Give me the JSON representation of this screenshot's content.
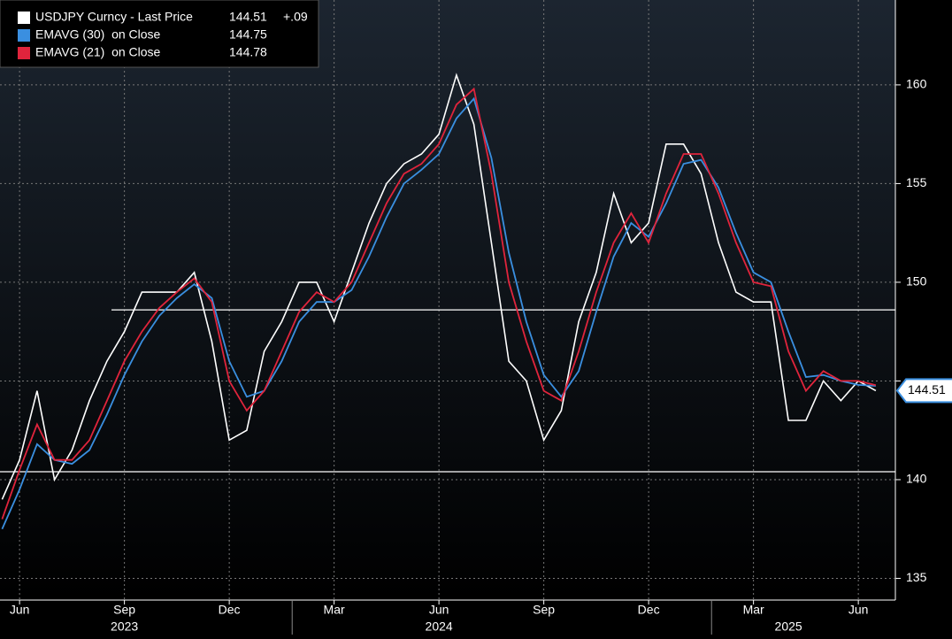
{
  "chart_data": {
    "type": "line",
    "legend": [
      {
        "name": "USDJPY Curncy - Last Price",
        "value": "144.51",
        "change": "+.09"
      },
      {
        "name": "EMAVG (30)  on Close",
        "value": "144.75"
      },
      {
        "name": "EMAVG (21)  on Close",
        "value": "144.78"
      }
    ],
    "x": [
      4.5,
      5,
      5.5,
      6,
      6.5,
      7,
      7.5,
      8,
      8.5,
      9,
      9.5,
      10,
      10.5,
      11,
      11.5,
      12,
      12.5,
      13,
      13.5,
      14,
      14.5,
      15,
      15.5,
      16,
      16.5,
      17,
      17.5,
      18,
      18.5,
      19,
      19.5,
      20,
      20.5,
      21,
      21.5,
      22,
      22.5,
      23,
      23.5,
      24,
      24.5,
      25,
      25.5,
      26,
      26.5,
      27,
      27.5,
      28,
      28.5,
      29,
      29.5
    ],
    "series": [
      {
        "name": "USDJPY Curncy - Last Price",
        "color": "#ffffff",
        "values": [
          139,
          141,
          144.5,
          140,
          141.5,
          144,
          146,
          147.5,
          149.5,
          149.5,
          149.5,
          150.5,
          147,
          142,
          142.5,
          146.5,
          148,
          150,
          150,
          148,
          150.5,
          153,
          155,
          156,
          156.5,
          157.5,
          160.5,
          158,
          152,
          146,
          145,
          142,
          143.5,
          148,
          150.5,
          154.5,
          152,
          153,
          157,
          157,
          155.5,
          152,
          149.5,
          149,
          149,
          143,
          143,
          145,
          144,
          145,
          144.51
        ]
      },
      {
        "name": "EMAVG (30)  on Close",
        "color": "#3a8fe0",
        "values": [
          137.5,
          139.5,
          141.8,
          141,
          140.8,
          141.5,
          143.3,
          145.3,
          147,
          148.3,
          149.2,
          149.9,
          149.2,
          146,
          144.2,
          144.5,
          146,
          148,
          149,
          149,
          149.6,
          151.3,
          153.3,
          155,
          155.7,
          156.5,
          158.3,
          159.3,
          156.3,
          151.5,
          148,
          145.3,
          144.2,
          145.5,
          148.5,
          151.3,
          153,
          152.3,
          154,
          156,
          156.2,
          154.8,
          152.5,
          150.5,
          150,
          147.5,
          145.2,
          145.3,
          145,
          144.8,
          144.75
        ]
      },
      {
        "name": "EMAVG (21)  on Close",
        "color": "#e0243c",
        "values": [
          138,
          140.5,
          142.8,
          141,
          141,
          142,
          144,
          146,
          147.5,
          148.7,
          149.5,
          150.2,
          149,
          145,
          143.5,
          144.5,
          146.5,
          148.5,
          149.5,
          149,
          150,
          152,
          154,
          155.5,
          156,
          157,
          159,
          159.8,
          155.5,
          150,
          147,
          144.5,
          144,
          146.5,
          149.5,
          152,
          153.5,
          152,
          154.5,
          156.5,
          156.5,
          154.5,
          152,
          150,
          149.8,
          146.5,
          144.5,
          145.5,
          145,
          145,
          144.78
        ]
      }
    ],
    "xlim": [
      4.44,
      30.06
    ],
    "xticks": [
      {
        "value": 5,
        "label": "Jun"
      },
      {
        "value": 8,
        "label": "Sep"
      },
      {
        "value": 11,
        "label": "Dec"
      },
      {
        "value": 14,
        "label": "Mar"
      },
      {
        "value": 17,
        "label": "Jun"
      },
      {
        "value": 20,
        "label": "Sep"
      },
      {
        "value": 23,
        "label": "Dec"
      },
      {
        "value": 26,
        "label": "Mar"
      },
      {
        "value": 29,
        "label": "Jun"
      }
    ],
    "years": [
      {
        "value": 8,
        "label": "2023"
      },
      {
        "value": 17,
        "label": "2024"
      },
      {
        "value": 27,
        "label": "2025"
      }
    ],
    "year_separators": [
      12.8,
      24.8
    ],
    "ylim": [
      133.9,
      164.3
    ],
    "yticks": [
      135,
      140,
      145,
      150,
      155,
      160
    ],
    "ytick_labels_shown": [
      {
        "value": 135,
        "label": "135"
      },
      {
        "value": 140,
        "label": "140"
      },
      {
        "value": 150,
        "label": "150"
      },
      {
        "value": 155,
        "label": "155"
      },
      {
        "value": 160,
        "label": "160"
      }
    ],
    "hlines": [
      148.6,
      140.4
    ],
    "last_value": 144.51,
    "grid": true
  }
}
